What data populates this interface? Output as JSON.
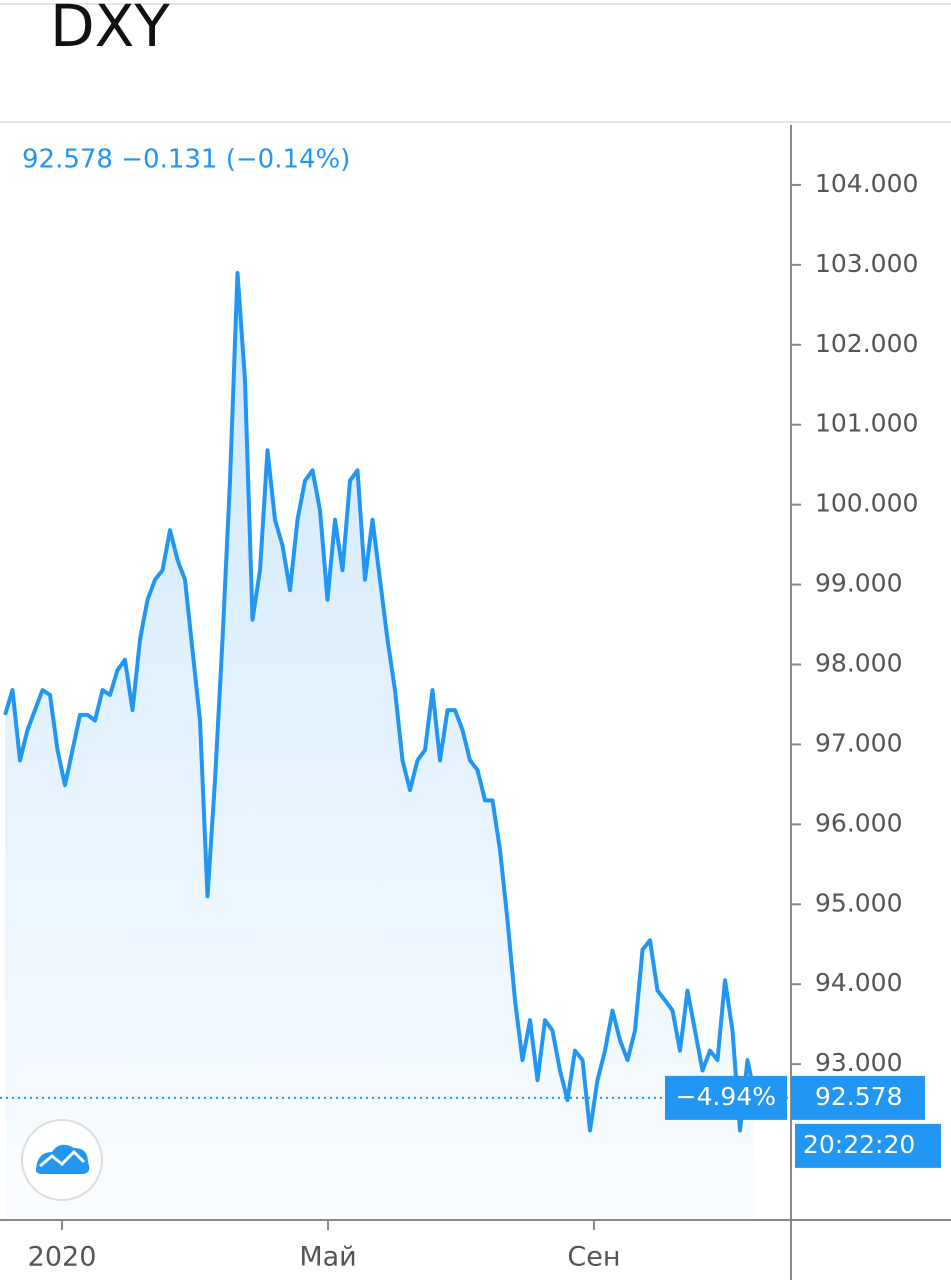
{
  "chart_data": {
    "type": "line",
    "title": "DXY",
    "legend_text": "92.578 −0.131 (−0.14%)",
    "color": "#2196f3",
    "values": [
      97.37,
      97.68,
      96.8,
      97.18,
      97.43,
      97.68,
      97.62,
      96.93,
      96.49,
      96.93,
      97.37,
      97.37,
      97.3,
      97.68,
      97.62,
      97.93,
      98.06,
      97.43,
      98.31,
      98.81,
      99.06,
      99.18,
      99.68,
      99.31,
      99.06,
      98.18,
      97.3,
      95.1,
      96.55,
      98.31,
      100.3,
      102.9,
      101.56,
      98.56,
      99.18,
      100.68,
      99.81,
      99.49,
      98.93,
      99.81,
      100.3,
      100.43,
      99.93,
      98.81,
      99.81,
      99.18,
      100.3,
      100.43,
      99.06,
      99.81,
      99.06,
      98.31,
      97.68,
      96.8,
      96.43,
      96.8,
      96.93,
      97.68,
      96.8,
      97.43,
      97.43,
      97.18,
      96.8,
      96.68,
      96.3,
      96.3,
      95.68,
      94.8,
      93.8,
      93.05,
      93.55,
      92.8,
      93.55,
      93.42,
      92.92,
      92.55,
      93.17,
      93.05,
      92.17,
      92.8,
      93.17,
      93.67,
      93.3,
      93.05,
      93.42,
      94.43,
      94.55,
      93.92,
      93.8,
      93.67,
      93.17,
      93.92,
      93.42,
      92.92,
      93.17,
      93.05,
      94.05,
      93.42,
      92.17,
      93.05,
      92.6
    ],
    "xlim": [
      -0.67,
      104.67
    ],
    "xticks": [
      {
        "value": 7.6,
        "label": "2020"
      },
      {
        "value": 43.07,
        "label": "Май"
      },
      {
        "value": 78.53,
        "label": "Сен"
      }
    ],
    "ylim": [
      91.05,
      104.75
    ],
    "yticks": [
      {
        "value": 93,
        "label": "93.000"
      },
      {
        "value": 94,
        "label": "94.000"
      },
      {
        "value": 95,
        "label": "95.000"
      },
      {
        "value": 96,
        "label": "96.000"
      },
      {
        "value": 97,
        "label": "97.000"
      },
      {
        "value": 98,
        "label": "98.000"
      },
      {
        "value": 99,
        "label": "99.000"
      },
      {
        "value": 100,
        "label": "100.000"
      },
      {
        "value": 101,
        "label": "101.000"
      },
      {
        "value": 102,
        "label": "102.000"
      },
      {
        "value": 103,
        "label": "103.000"
      },
      {
        "value": 104,
        "label": "104.000"
      }
    ],
    "last_price": {
      "value": 92.578,
      "label": "92.578"
    },
    "change_percent": "−4.94%",
    "time": "20:22:20"
  }
}
